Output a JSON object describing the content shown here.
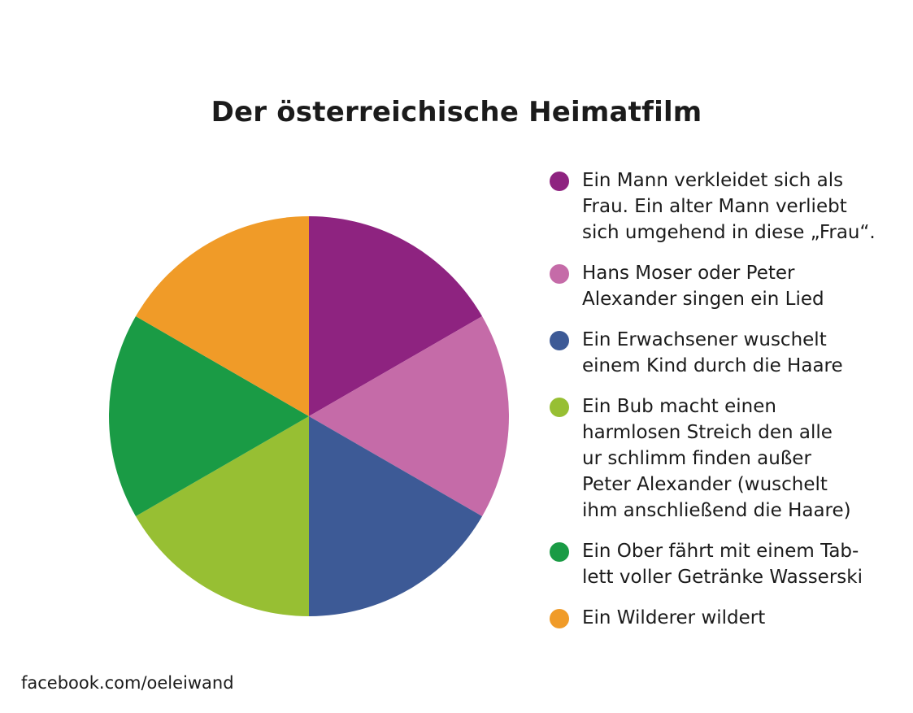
{
  "chart_data": {
    "type": "pie",
    "title": "Der österreichische Heimatfilm",
    "slices": [
      {
        "label": "Ein Mann verkleidet sich als\nFrau. Ein alter Mann verliebt\nsich umgehend in diese „Frau“.",
        "value": 16.67,
        "color": "#8e2380"
      },
      {
        "label": "Hans Moser oder Peter\nAlexander singen ein Lied",
        "value": 16.67,
        "color": "#c56ba8"
      },
      {
        "label": "Ein Erwachsener wuschelt\neinem Kind durch die Haare",
        "value": 16.67,
        "color": "#3d5a96"
      },
      {
        "label": "Ein Bub macht einen\nharmlosen Streich den alle\nur schlimm finden außer\nPeter Alexander (wuschelt\nihm anschließend die Haare)",
        "value": 16.67,
        "color": "#97bf33"
      },
      {
        "label": "Ein Ober fährt mit einem Tab-\nlett voller Getränke Wasserski",
        "value": 16.67,
        "color": "#1a9b45"
      },
      {
        "label": "Ein Wilderer wildert",
        "value": 16.67,
        "color": "#f09b28"
      }
    ],
    "legend_position": "right"
  },
  "footer": {
    "source": "facebook.com/oeleiwand"
  }
}
